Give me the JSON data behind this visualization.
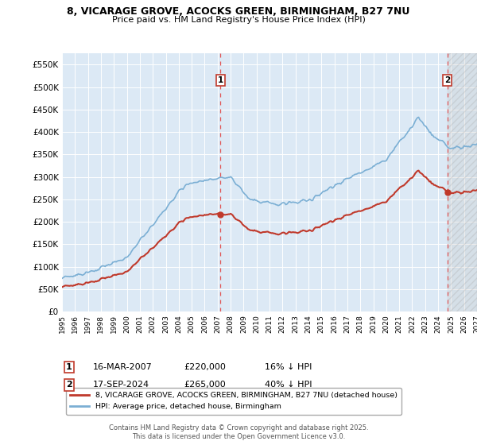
{
  "title_line1": "8, VICARAGE GROVE, ACOCKS GREEN, BIRMINGHAM, B27 7NU",
  "title_line2": "Price paid vs. HM Land Registry's House Price Index (HPI)",
  "ylim": [
    0,
    575000
  ],
  "yticks": [
    0,
    50000,
    100000,
    150000,
    200000,
    250000,
    300000,
    350000,
    400000,
    450000,
    500000,
    550000
  ],
  "ytick_labels": [
    "£0",
    "£50K",
    "£100K",
    "£150K",
    "£200K",
    "£250K",
    "£300K",
    "£350K",
    "£400K",
    "£450K",
    "£500K",
    "£550K"
  ],
  "hpi_color": "#7bafd4",
  "price_color": "#c0392b",
  "dashed_line_color": "#e05555",
  "bg_color": "#dce9f5",
  "sale1_x": 2007.21,
  "sale1_y": 220000,
  "sale2_x": 2024.72,
  "sale2_y": 265000,
  "legend_label1": "8, VICARAGE GROVE, ACOCKS GREEN, BIRMINGHAM, B27 7NU (detached house)",
  "legend_label2": "HPI: Average price, detached house, Birmingham",
  "note1_date": "16-MAR-2007",
  "note1_price": "£220,000",
  "note1_pct": "16% ↓ HPI",
  "note2_date": "17-SEP-2024",
  "note2_price": "£265,000",
  "note2_pct": "40% ↓ HPI",
  "footer": "Contains HM Land Registry data © Crown copyright and database right 2025.\nThis data is licensed under the Open Government Licence v3.0.",
  "xmin": 1995,
  "xmax": 2027
}
